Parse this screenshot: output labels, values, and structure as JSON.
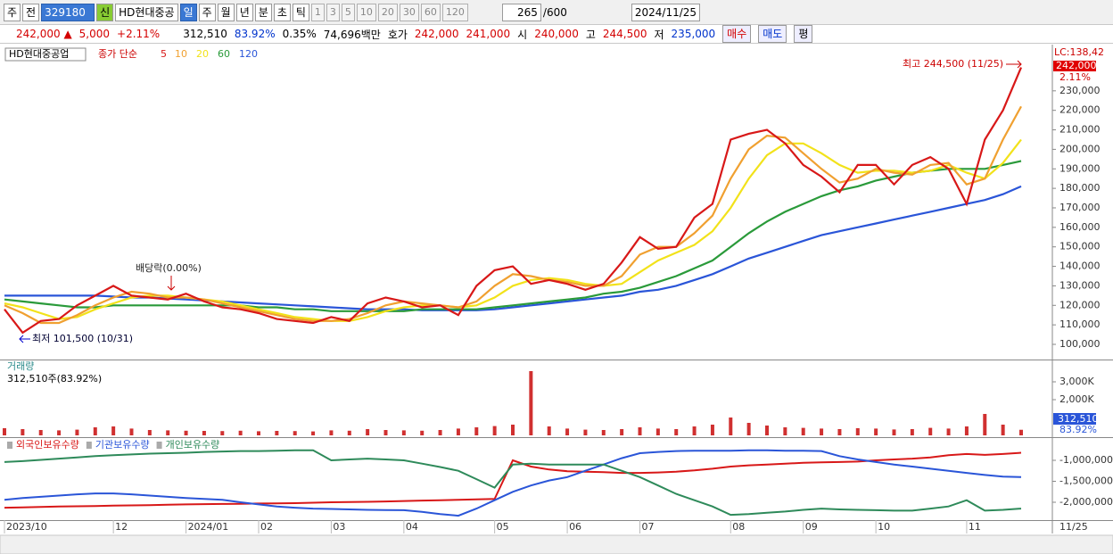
{
  "toolbar": {
    "items": [
      "주",
      "전",
      "329180",
      "HD현대중공",
      "신",
      "일",
      "주",
      "월",
      "년",
      "분",
      "초",
      "틱",
      "1",
      "3",
      "5",
      "10",
      "20",
      "30",
      "60",
      "120",
      "265",
      "/600",
      "2024/11/25"
    ]
  },
  "info_bar": {
    "items": [
      "242,000 ▲",
      "5,000",
      "+2.11%",
      "312,510",
      "83.92%",
      "0.35%",
      "74,696백만",
      "호가",
      "242,000",
      "241,000",
      "시",
      "240,000",
      "고",
      "244,500",
      "저",
      "235,000",
      "매수",
      "매도",
      "평"
    ]
  },
  "chart_data": [
    {
      "type": "line",
      "title": "HD현대중공업",
      "subtitle": "종가 단순",
      "lc_label": "LC:138,42",
      "last_label": "242,000",
      "change_label": "2.11%",
      "annotations": [
        "최고 244,500 (11/25)",
        "최저 101,500 (10/31)",
        "배당락(0.00%)"
      ],
      "ylim": [
        93600,
        250500
      ],
      "yticks": [
        {
          "value": 100000,
          "label": "100,000"
        },
        {
          "value": 110000,
          "label": "110,000"
        },
        {
          "value": 120000,
          "label": "120,000"
        },
        {
          "value": 130000,
          "label": "130,000"
        },
        {
          "value": 140000,
          "label": "140,000"
        },
        {
          "value": 150000,
          "label": "150,000"
        },
        {
          "value": 160000,
          "label": "160,000"
        },
        {
          "value": 170000,
          "label": "170,000"
        },
        {
          "value": 180000,
          "label": "180,000"
        },
        {
          "value": 190000,
          "label": "190,000"
        },
        {
          "value": 200000,
          "label": "200,000"
        },
        {
          "value": 210000,
          "label": "210,000"
        },
        {
          "value": 220000,
          "label": "220,000"
        },
        {
          "value": 230000,
          "label": "230,000"
        }
      ],
      "series": [
        {
          "name": "120",
          "color": "#2a55d8",
          "values": [
            125000,
            125000,
            125000,
            125000,
            125000,
            125000,
            124500,
            124000,
            124000,
            123500,
            123000,
            122500,
            122000,
            121500,
            121000,
            120500,
            120000,
            119500,
            119000,
            118500,
            118000,
            118000,
            118000,
            117500,
            117500,
            117500,
            117500,
            118000,
            119000,
            120000,
            121000,
            122000,
            123000,
            124000,
            125000,
            127000,
            128000,
            130000,
            133000,
            136000,
            140000,
            144000,
            147000,
            150000,
            153000,
            156000,
            158000,
            160000,
            162000,
            164000,
            166000,
            168000,
            170000,
            172000,
            174000,
            177000,
            181000
          ]
        },
        {
          "name": "60",
          "color": "#2a9a3a",
          "values": [
            123000,
            122000,
            121000,
            120000,
            119000,
            119000,
            120000,
            120000,
            120000,
            120000,
            120000,
            120000,
            120000,
            120000,
            119000,
            119000,
            118000,
            118000,
            117000,
            117000,
            117000,
            117000,
            117000,
            118000,
            118000,
            118000,
            118000,
            119000,
            120000,
            121000,
            122000,
            123000,
            124000,
            126000,
            127000,
            129000,
            132000,
            135000,
            139000,
            143000,
            150000,
            157000,
            163000,
            168000,
            172000,
            176000,
            179000,
            181000,
            184000,
            186000,
            188000,
            189000,
            190000,
            190000,
            190000,
            192000,
            194000
          ]
        },
        {
          "name": "20",
          "color": "#f2e21a",
          "values": [
            121000,
            119000,
            116000,
            113000,
            114000,
            118000,
            121000,
            124000,
            125000,
            125000,
            124000,
            123000,
            122000,
            120000,
            118000,
            116000,
            114000,
            113000,
            112000,
            112000,
            114000,
            117000,
            119000,
            120000,
            120000,
            119000,
            120000,
            124000,
            130000,
            133000,
            134000,
            133000,
            131000,
            130000,
            131000,
            137000,
            143000,
            147000,
            151000,
            158000,
            170000,
            185000,
            197000,
            203000,
            203000,
            198000,
            192000,
            188000,
            189000,
            189000,
            188000,
            189000,
            192000,
            188000,
            185000,
            193000,
            205000
          ]
        },
        {
          "name": "10",
          "color": "#f0a030",
          "values": [
            120000,
            116000,
            111000,
            111000,
            115000,
            120000,
            124000,
            127000,
            126000,
            124000,
            124000,
            123000,
            121000,
            119000,
            117000,
            115000,
            113000,
            112000,
            112000,
            113000,
            116000,
            120000,
            122000,
            121000,
            120000,
            119000,
            122000,
            130000,
            136000,
            135000,
            133000,
            132000,
            130000,
            130000,
            135000,
            146000,
            150000,
            150000,
            157000,
            166000,
            185000,
            200000,
            207000,
            206000,
            198000,
            190000,
            183000,
            185000,
            190000,
            188000,
            187000,
            192000,
            193000,
            182000,
            185000,
            205000,
            222000
          ]
        },
        {
          "name": "5",
          "color": "#d81818",
          "values": [
            118000,
            106000,
            112000,
            113000,
            120000,
            125000,
            130000,
            125000,
            124000,
            123000,
            126000,
            122000,
            119000,
            118000,
            116000,
            113000,
            112000,
            111000,
            114000,
            112000,
            121000,
            124000,
            122000,
            119000,
            120000,
            115000,
            130000,
            138000,
            140000,
            131000,
            133000,
            131000,
            128000,
            131000,
            142000,
            155000,
            149000,
            150000,
            165000,
            172000,
            205000,
            208000,
            210000,
            203000,
            192000,
            186000,
            178000,
            192000,
            192000,
            182000,
            192000,
            196000,
            190000,
            172000,
            205000,
            220000,
            242000
          ]
        }
      ]
    },
    {
      "type": "bar",
      "title": "거래량",
      "subtitle": "312,510주(83.92%)",
      "last_label": "312,510",
      "ratio_label": "83.92%",
      "color": "#d03030",
      "ylim": [
        0,
        4100000
      ],
      "yticks": [
        {
          "value": 2000000,
          "label": "2,000K"
        },
        {
          "value": 3000000,
          "label": "3,000K"
        }
      ],
      "values": [
        400000,
        350000,
        300000,
        280000,
        320000,
        450000,
        500000,
        380000,
        300000,
        280000,
        260000,
        250000,
        240000,
        260000,
        230000,
        250000,
        240000,
        220000,
        280000,
        260000,
        350000,
        300000,
        280000,
        260000,
        300000,
        380000,
        450000,
        520000,
        600000,
        3600000,
        500000,
        380000,
        320000,
        300000,
        350000,
        450000,
        380000,
        350000,
        500000,
        600000,
        1000000,
        700000,
        550000,
        450000,
        420000,
        380000,
        350000,
        400000,
        380000,
        330000,
        350000,
        420000,
        380000,
        500000,
        1200000,
        600000,
        312510
      ]
    },
    {
      "type": "line",
      "ylim": [
        -2425000,
        -490000
      ],
      "yticks": [
        {
          "value": -1000000,
          "label": "-1,000,000"
        },
        {
          "value": -1500000,
          "label": "-1,500,000"
        },
        {
          "value": -2000000,
          "label": "-2,000,000"
        }
      ],
      "x": [
        "2023/10",
        null,
        null,
        null,
        null,
        null,
        "12",
        null,
        null,
        null,
        "2024/01",
        null,
        null,
        null,
        "02",
        null,
        null,
        null,
        "03",
        null,
        null,
        null,
        "04",
        null,
        null,
        null,
        null,
        "05",
        null,
        null,
        null,
        "06",
        null,
        null,
        null,
        "07",
        null,
        null,
        null,
        null,
        "08",
        null,
        null,
        null,
        "09",
        null,
        null,
        null,
        "10",
        null,
        null,
        null,
        null,
        "11",
        null,
        null,
        null
      ],
      "x_end_label": "11/25",
      "series": [
        {
          "name": "외국인보유수량",
          "color": "#d81818",
          "values": [
            -2130000,
            -2120000,
            -2110000,
            -2100000,
            -2095000,
            -2090000,
            -2080000,
            -2075000,
            -2070000,
            -2060000,
            -2050000,
            -2045000,
            -2040000,
            -2035000,
            -2030000,
            -2025000,
            -2020000,
            -2010000,
            -2000000,
            -1995000,
            -1990000,
            -1980000,
            -1970000,
            -1960000,
            -1950000,
            -1940000,
            -1930000,
            -1920000,
            -1000000,
            -1150000,
            -1220000,
            -1260000,
            -1270000,
            -1280000,
            -1300000,
            -1300000,
            -1290000,
            -1270000,
            -1240000,
            -1200000,
            -1150000,
            -1120000,
            -1100000,
            -1080000,
            -1060000,
            -1050000,
            -1040000,
            -1030000,
            -1000000,
            -980000,
            -960000,
            -930000,
            -880000,
            -850000,
            -870000,
            -850000,
            -820000
          ]
        },
        {
          "name": "기관보유수량",
          "color": "#2a55d8",
          "values": [
            -1940000,
            -1900000,
            -1870000,
            -1840000,
            -1810000,
            -1790000,
            -1790000,
            -1810000,
            -1840000,
            -1870000,
            -1900000,
            -1920000,
            -1940000,
            -2000000,
            -2050000,
            -2100000,
            -2130000,
            -2150000,
            -2160000,
            -2170000,
            -2180000,
            -2185000,
            -2190000,
            -2230000,
            -2280000,
            -2320000,
            -2150000,
            -1950000,
            -1750000,
            -1600000,
            -1480000,
            -1400000,
            -1250000,
            -1100000,
            -950000,
            -830000,
            -800000,
            -780000,
            -770000,
            -770000,
            -770000,
            -760000,
            -760000,
            -770000,
            -770000,
            -780000,
            -900000,
            -980000,
            -1040000,
            -1100000,
            -1150000,
            -1200000,
            -1250000,
            -1300000,
            -1350000,
            -1390000,
            -1400000
          ]
        },
        {
          "name": "개인보유수량",
          "color": "#2e8a5a",
          "values": [
            -1040000,
            -1020000,
            -990000,
            -960000,
            -930000,
            -900000,
            -880000,
            -860000,
            -840000,
            -830000,
            -820000,
            -800000,
            -790000,
            -780000,
            -780000,
            -770000,
            -760000,
            -760000,
            -1000000,
            -980000,
            -960000,
            -980000,
            -1000000,
            -1080000,
            -1160000,
            -1250000,
            -1450000,
            -1650000,
            -1100000,
            -1080000,
            -1100000,
            -1100000,
            -1100000,
            -1100000,
            -1250000,
            -1400000,
            -1600000,
            -1800000,
            -1950000,
            -2100000,
            -2300000,
            -2280000,
            -2250000,
            -2220000,
            -2180000,
            -2150000,
            -2170000,
            -2180000,
            -2190000,
            -2200000,
            -2200000,
            -2150000,
            -2100000,
            -1950000,
            -2200000,
            -2180000,
            -2150000
          ]
        }
      ]
    }
  ]
}
